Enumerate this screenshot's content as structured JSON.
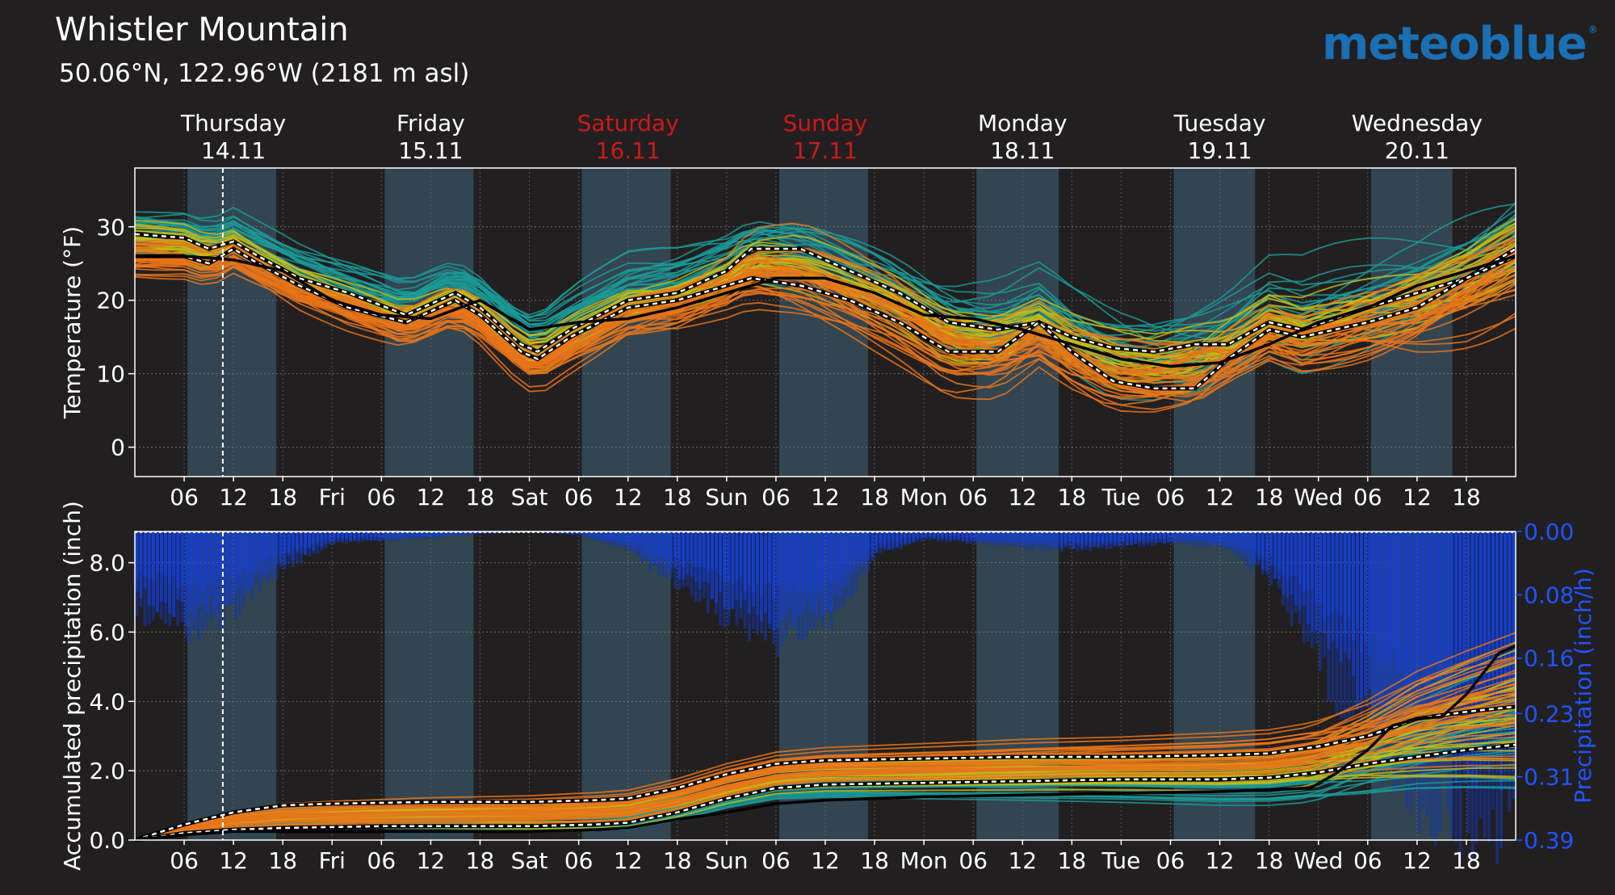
{
  "header": {
    "location": "Whistler Mountain",
    "coords": "50.06°N, 122.96°W (2181 m asl)",
    "brand": "meteoblue",
    "brand_mark": "®"
  },
  "colors": {
    "background": "#221f20",
    "night_band": "#221f20",
    "day_band": "#324550",
    "weekend_label": "#cc1a1a",
    "precip_bars": "#1747f0",
    "precip_axis": "#1f55ff",
    "member_orange": "#e8741a",
    "member_yellow": "#c4b818",
    "member_teal": "#1a9a96",
    "mean_line": "#ffffff",
    "control_line": "#000000"
  },
  "days": [
    {
      "name": "Thursday",
      "date": "14.11",
      "weekend": false
    },
    {
      "name": "Friday",
      "date": "15.11",
      "weekend": false
    },
    {
      "name": "Saturday",
      "date": "16.11",
      "weekend": true
    },
    {
      "name": "Sunday",
      "date": "17.11",
      "weekend": true
    },
    {
      "name": "Monday",
      "date": "18.11",
      "weekend": false
    },
    {
      "name": "Tuesday",
      "date": "19.11",
      "weekend": false
    },
    {
      "name": "Wednesday",
      "date": "20.11",
      "weekend": false
    }
  ],
  "chart_data": [
    {
      "type": "line",
      "title": "",
      "ylabel": "Temperature (°F)",
      "ylim": [
        -4,
        38
      ],
      "yticks": [
        0,
        10,
        20,
        30
      ],
      "x_hours": [
        0,
        168
      ],
      "xtick_hours": [
        6,
        12,
        18,
        24,
        30,
        36,
        42,
        48,
        54,
        60,
        66,
        72,
        78,
        84,
        90,
        96,
        102,
        108,
        114,
        120,
        126,
        132,
        138,
        144,
        150,
        156,
        162
      ],
      "xtick_labels": [
        "06",
        "12",
        "18",
        "Fri",
        "06",
        "12",
        "18",
        "Sat",
        "06",
        "12",
        "18",
        "Sun",
        "06",
        "12",
        "18",
        "Mon",
        "06",
        "12",
        "18",
        "Tue",
        "06",
        "12",
        "18",
        "Wed",
        "06",
        "12",
        "18"
      ],
      "daylight_hours": [
        [
          6.4,
          17.2
        ],
        [
          30.4,
          41.2
        ],
        [
          54.4,
          65.2
        ],
        [
          78.4,
          89.2
        ],
        [
          102.4,
          112.4
        ],
        [
          126.4,
          136.3
        ],
        [
          150.4,
          160.3
        ]
      ],
      "now_hour": 10.7,
      "series": [
        {
          "style": "mean-upper",
          "points": [
            [
              0,
              29
            ],
            [
              6,
              28.5
            ],
            [
              9,
              27
            ],
            [
              12,
              28
            ],
            [
              15,
              26
            ],
            [
              20,
              23
            ],
            [
              26,
              21
            ],
            [
              33,
              18
            ],
            [
              39,
              21
            ],
            [
              42,
              19
            ],
            [
              47,
              14
            ],
            [
              49,
              13
            ],
            [
              53,
              16
            ],
            [
              60,
              20
            ],
            [
              66,
              21
            ],
            [
              72,
              24
            ],
            [
              75,
              27
            ],
            [
              81,
              27
            ],
            [
              87,
              24
            ],
            [
              93,
              21
            ],
            [
              99,
              17
            ],
            [
              105,
              16
            ],
            [
              110,
              17
            ],
            [
              114,
              15
            ],
            [
              119,
              13.5
            ],
            [
              124,
              13
            ],
            [
              129,
              14
            ],
            [
              133,
              14
            ],
            [
              138,
              17
            ],
            [
              142,
              16
            ],
            [
              150,
              19
            ],
            [
              156,
              21
            ],
            [
              162,
              23
            ],
            [
              168,
              27
            ]
          ]
        },
        {
          "style": "mean-lower",
          "points": [
            [
              0,
              26
            ],
            [
              6,
              26
            ],
            [
              9,
              25
            ],
            [
              12,
              27
            ],
            [
              15,
              25
            ],
            [
              20,
              22
            ],
            [
              26,
              19
            ],
            [
              33,
              17
            ],
            [
              39,
              20
            ],
            [
              42,
              18
            ],
            [
              47,
              13
            ],
            [
              49,
              12
            ],
            [
              53,
              15
            ],
            [
              60,
              19
            ],
            [
              66,
              20
            ],
            [
              72,
              22
            ],
            [
              75,
              23
            ],
            [
              81,
              22
            ],
            [
              87,
              20
            ],
            [
              93,
              17
            ],
            [
              99,
              13
            ],
            [
              105,
              13
            ],
            [
              110,
              17
            ],
            [
              114,
              13
            ],
            [
              119,
              9
            ],
            [
              124,
              8
            ],
            [
              129,
              8
            ],
            [
              133,
              12
            ],
            [
              138,
              16
            ],
            [
              142,
              15
            ],
            [
              150,
              17
            ],
            [
              156,
              19
            ],
            [
              162,
              23
            ],
            [
              168,
              26
            ]
          ]
        },
        {
          "style": "control",
          "points": [
            [
              0,
              26
            ],
            [
              6,
              26
            ],
            [
              12,
              25.5
            ],
            [
              18,
              24
            ],
            [
              24,
              20
            ],
            [
              30,
              18
            ],
            [
              36,
              17.5
            ],
            [
              42,
              20
            ],
            [
              48,
              16
            ],
            [
              54,
              17
            ],
            [
              60,
              17.5
            ],
            [
              66,
              19
            ],
            [
              72,
              21
            ],
            [
              78,
              23
            ],
            [
              84,
              23
            ],
            [
              90,
              21
            ],
            [
              96,
              18
            ],
            [
              102,
              17.5
            ],
            [
              108,
              16
            ],
            [
              114,
              14
            ],
            [
              120,
              12
            ],
            [
              126,
              11
            ],
            [
              132,
              11.5
            ],
            [
              138,
              14
            ],
            [
              144,
              17
            ],
            [
              150,
              19
            ],
            [
              156,
              22
            ],
            [
              162,
              24
            ],
            [
              168,
              26
            ]
          ]
        }
      ]
    },
    {
      "type": "line",
      "title": "",
      "ylabel": "Accumulated precipitation (inch)",
      "y2label": "Precipitation (inch/h)",
      "ylim": [
        0,
        8.9
      ],
      "yticks": [
        0,
        2,
        4,
        6,
        8
      ],
      "ytick_labels": [
        "0.0",
        "2.0",
        "4.0",
        "6.0",
        "8.0"
      ],
      "y2lim_inverted": [
        0.0,
        0.39
      ],
      "y2ticks": [
        0.0,
        0.08,
        0.16,
        0.23,
        0.31,
        0.39
      ],
      "y2tick_labels": [
        "0.00",
        "0.08",
        "0.16",
        "0.23",
        "0.31",
        "0.39"
      ],
      "x_hours": [
        0,
        168
      ],
      "xtick_hours": [
        6,
        12,
        18,
        24,
        30,
        36,
        42,
        48,
        54,
        60,
        66,
        72,
        78,
        84,
        90,
        96,
        102,
        108,
        114,
        120,
        126,
        132,
        138,
        144,
        150,
        156,
        162
      ],
      "xtick_labels": [
        "06",
        "12",
        "18",
        "Fri",
        "06",
        "12",
        "18",
        "Sat",
        "06",
        "12",
        "18",
        "Sun",
        "06",
        "12",
        "18",
        "Mon",
        "06",
        "12",
        "18",
        "Tue",
        "06",
        "12",
        "18",
        "Wed",
        "06",
        "12",
        "18"
      ],
      "daylight_hours": [
        [
          6.4,
          17.2
        ],
        [
          30.4,
          41.2
        ],
        [
          54.4,
          65.2
        ],
        [
          78.4,
          89.2
        ],
        [
          102.4,
          112.4
        ],
        [
          126.4,
          136.3
        ],
        [
          150.4,
          160.3
        ]
      ],
      "now_hour": 10.7,
      "series": [
        {
          "style": "mean-upper",
          "points": [
            [
              0,
              0
            ],
            [
              6,
              0.45
            ],
            [
              12,
              0.8
            ],
            [
              18,
              1.0
            ],
            [
              24,
              1.05
            ],
            [
              36,
              1.1
            ],
            [
              48,
              1.1
            ],
            [
              56,
              1.15
            ],
            [
              60,
              1.2
            ],
            [
              66,
              1.5
            ],
            [
              72,
              1.9
            ],
            [
              78,
              2.2
            ],
            [
              84,
              2.3
            ],
            [
              96,
              2.35
            ],
            [
              108,
              2.4
            ],
            [
              120,
              2.4
            ],
            [
              132,
              2.45
            ],
            [
              138,
              2.5
            ],
            [
              144,
              2.7
            ],
            [
              150,
              3.0
            ],
            [
              156,
              3.5
            ],
            [
              162,
              3.7
            ],
            [
              168,
              3.85
            ]
          ]
        },
        {
          "style": "mean-lower",
          "points": [
            [
              0,
              0
            ],
            [
              6,
              0.2
            ],
            [
              12,
              0.3
            ],
            [
              18,
              0.35
            ],
            [
              30,
              0.4
            ],
            [
              48,
              0.4
            ],
            [
              56,
              0.45
            ],
            [
              60,
              0.5
            ],
            [
              66,
              0.8
            ],
            [
              72,
              1.2
            ],
            [
              78,
              1.5
            ],
            [
              84,
              1.6
            ],
            [
              96,
              1.65
            ],
            [
              108,
              1.7
            ],
            [
              120,
              1.75
            ],
            [
              132,
              1.75
            ],
            [
              138,
              1.8
            ],
            [
              144,
              1.95
            ],
            [
              150,
              2.2
            ],
            [
              156,
              2.4
            ],
            [
              162,
              2.6
            ],
            [
              168,
              2.75
            ]
          ]
        },
        {
          "style": "control",
          "points": [
            [
              0,
              0
            ],
            [
              6,
              0.15
            ],
            [
              12,
              0.25
            ],
            [
              18,
              0.25
            ],
            [
              48,
              0.25
            ],
            [
              56,
              0.3
            ],
            [
              60,
              0.35
            ],
            [
              66,
              0.6
            ],
            [
              72,
              0.8
            ],
            [
              78,
              1.05
            ],
            [
              84,
              1.15
            ],
            [
              96,
              1.25
            ],
            [
              108,
              1.3
            ],
            [
              120,
              1.35
            ],
            [
              132,
              1.4
            ],
            [
              138,
              1.45
            ],
            [
              143,
              1.5
            ],
            [
              146,
              1.9
            ],
            [
              150,
              2.6
            ],
            [
              153,
              3.3
            ],
            [
              156,
              3.5
            ],
            [
              159,
              3.55
            ],
            [
              162,
              4.2
            ],
            [
              166,
              5.4
            ],
            [
              168,
              5.6
            ]
          ]
        }
      ],
      "hourly_precip_envelope": [
        [
          0,
          0.1
        ],
        [
          6,
          0.13
        ],
        [
          9,
          0.12
        ],
        [
          12,
          0.1
        ],
        [
          15,
          0.07
        ],
        [
          19,
          0.04
        ],
        [
          24,
          0.015
        ],
        [
          30,
          0.012
        ],
        [
          36,
          0.008
        ],
        [
          42,
          0.003
        ],
        [
          48,
          0.001
        ],
        [
          54,
          0.005
        ],
        [
          60,
          0.025
        ],
        [
          66,
          0.07
        ],
        [
          72,
          0.11
        ],
        [
          78,
          0.14
        ],
        [
          84,
          0.12
        ],
        [
          90,
          0.03
        ],
        [
          96,
          0.01
        ],
        [
          102,
          0.015
        ],
        [
          108,
          0.02
        ],
        [
          114,
          0.025
        ],
        [
          120,
          0.02
        ],
        [
          126,
          0.015
        ],
        [
          132,
          0.02
        ],
        [
          138,
          0.06
        ],
        [
          144,
          0.17
        ],
        [
          150,
          0.27
        ],
        [
          156,
          0.34
        ],
        [
          162,
          0.37
        ],
        [
          168,
          0.38
        ]
      ]
    }
  ]
}
